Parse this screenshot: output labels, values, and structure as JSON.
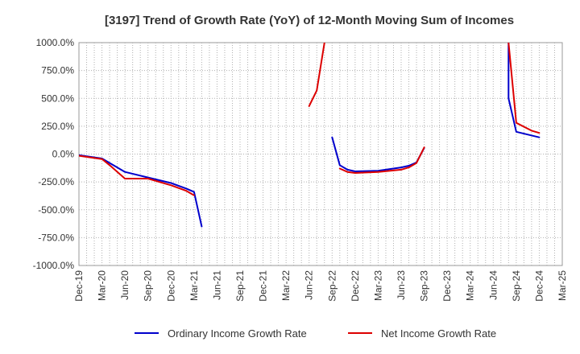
{
  "chart_data": {
    "type": "line",
    "title": "[3197]  Trend of Growth Rate (YoY) of 12-Month Moving Sum of Incomes",
    "xlabel": "",
    "ylabel": "",
    "ylim": [
      -1000,
      1000
    ],
    "y_ticks": [
      "1000.0%",
      "750.0%",
      "500.0%",
      "250.0%",
      "0.0%",
      "-250.0%",
      "-500.0%",
      "-750.0%",
      "-1000.0%"
    ],
    "y_tick_values": [
      1000,
      750,
      500,
      250,
      0,
      -250,
      -500,
      -750,
      -1000
    ],
    "x_ticks": [
      "Dec-19",
      "Mar-20",
      "Jun-20",
      "Sep-20",
      "Dec-20",
      "Mar-21",
      "Jun-21",
      "Sep-21",
      "Dec-21",
      "Mar-22",
      "Jun-22",
      "Sep-22",
      "Dec-22",
      "Mar-23",
      "Jun-23",
      "Sep-23",
      "Dec-23",
      "Mar-24",
      "Jun-24",
      "Sep-24",
      "Dec-24",
      "Mar-25"
    ],
    "x_months": [
      "2019-12",
      "2020-01",
      "2020-02",
      "2020-03",
      "2020-04",
      "2020-05",
      "2020-06",
      "2020-07",
      "2020-08",
      "2020-09",
      "2020-10",
      "2020-11",
      "2020-12",
      "2021-01",
      "2021-02",
      "2021-03",
      "2021-04",
      "2021-05",
      "2021-06",
      "2021-07",
      "2021-08",
      "2021-09",
      "2021-10",
      "2021-11",
      "2021-12",
      "2022-01",
      "2022-02",
      "2022-03",
      "2022-04",
      "2022-05",
      "2022-06",
      "2022-07",
      "2022-08",
      "2022-09",
      "2022-10",
      "2022-11",
      "2022-12",
      "2023-01",
      "2023-02",
      "2023-03",
      "2023-04",
      "2023-05",
      "2023-06",
      "2023-07",
      "2023-08",
      "2023-09",
      "2023-10",
      "2023-11",
      "2023-12",
      "2024-01",
      "2024-02",
      "2024-03",
      "2024-04",
      "2024-05",
      "2024-06",
      "2024-07",
      "2024-08",
      "2024-09",
      "2024-10",
      "2024-11",
      "2024-12",
      "2025-01",
      "2025-02",
      "2025-03"
    ],
    "grid": true,
    "legend_position": "bottom",
    "series": [
      {
        "name": "Ordinary Income Growth Rate",
        "color": "#0000cc",
        "points": [
          {
            "x": "2019-12",
            "y": -10
          },
          {
            "x": "2020-03",
            "y": -40
          },
          {
            "x": "2020-06",
            "y": -160
          },
          {
            "x": "2020-09",
            "y": -210
          },
          {
            "x": "2020-12",
            "y": -260
          },
          {
            "x": "2021-02",
            "y": -310
          },
          {
            "x": "2021-03",
            "y": -340
          },
          {
            "x": "2021-04",
            "y": -650
          },
          {
            "x": null,
            "y": null
          },
          {
            "x": "2022-09",
            "y": 150
          },
          {
            "x": "2022-10",
            "y": -100
          },
          {
            "x": "2022-11",
            "y": -140
          },
          {
            "x": "2022-12",
            "y": -155
          },
          {
            "x": "2023-03",
            "y": -150
          },
          {
            "x": "2023-06",
            "y": -120
          },
          {
            "x": "2023-07",
            "y": -105
          },
          {
            "x": "2023-08",
            "y": -75
          },
          {
            "x": "2023-09",
            "y": 55
          },
          {
            "x": null,
            "y": null
          },
          {
            "x": "2024-08",
            "y": 1000
          },
          {
            "x": "2024-08",
            "y": 500
          },
          {
            "x": "2024-09",
            "y": 200
          },
          {
            "x": "2024-12",
            "y": 150
          }
        ]
      },
      {
        "name": "Net Income Growth Rate",
        "color": "#dd0000",
        "points": [
          {
            "x": "2019-12",
            "y": -15
          },
          {
            "x": "2020-03",
            "y": -45
          },
          {
            "x": "2020-04",
            "y": -100
          },
          {
            "x": "2020-06",
            "y": -220
          },
          {
            "x": "2020-09",
            "y": -220
          },
          {
            "x": "2020-12",
            "y": -280
          },
          {
            "x": "2021-02",
            "y": -330
          },
          {
            "x": "2021-03",
            "y": -370
          },
          {
            "x": null,
            "y": null
          },
          {
            "x": "2022-06",
            "y": 430
          },
          {
            "x": "2022-07",
            "y": 570
          },
          {
            "x": "2022-08",
            "y": 1000
          },
          {
            "x": null,
            "y": null
          },
          {
            "x": "2022-10",
            "y": -130
          },
          {
            "x": "2022-11",
            "y": -160
          },
          {
            "x": "2022-12",
            "y": -170
          },
          {
            "x": "2023-03",
            "y": -160
          },
          {
            "x": "2023-06",
            "y": -140
          },
          {
            "x": "2023-07",
            "y": -120
          },
          {
            "x": "2023-08",
            "y": -80
          },
          {
            "x": "2023-09",
            "y": 60
          },
          {
            "x": null,
            "y": null
          },
          {
            "x": "2024-08",
            "y": 1000
          },
          {
            "x": "2024-09",
            "y": 280
          },
          {
            "x": "2024-11",
            "y": 210
          },
          {
            "x": "2024-12",
            "y": 190
          }
        ]
      }
    ]
  }
}
